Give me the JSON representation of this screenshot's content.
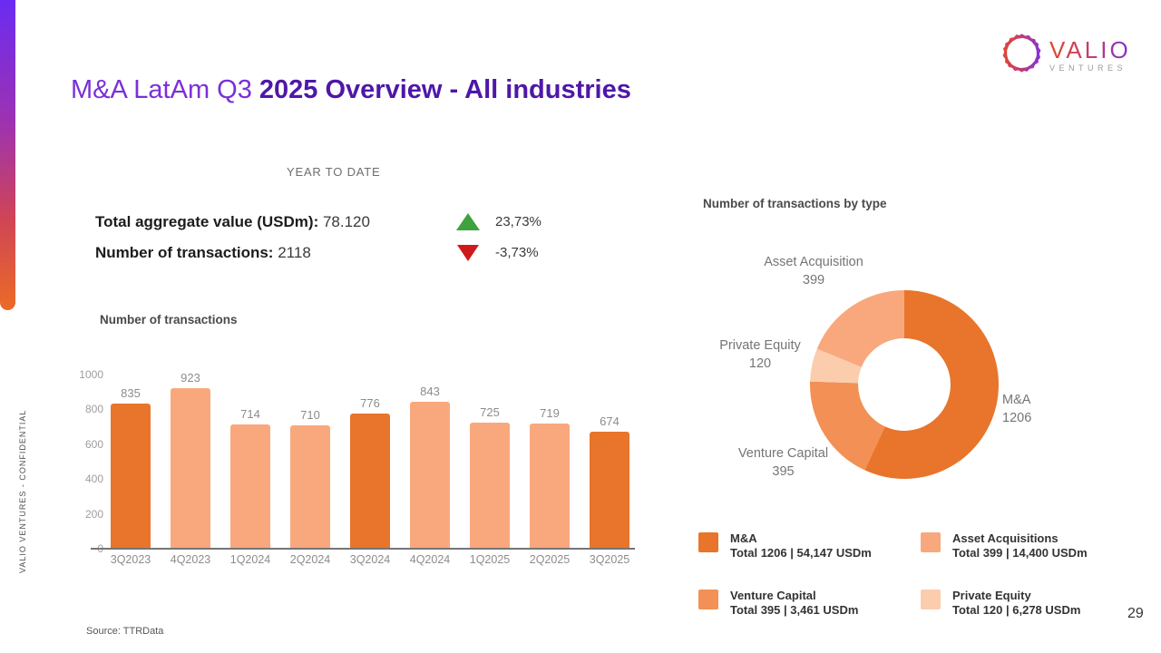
{
  "slide": {
    "title_regular": "M&A LatAm Q3 ",
    "title_bold": "2025 Overview - All industries",
    "title_regular_color": "#7b2fd8",
    "title_bold_color": "#4e17a8",
    "confidential": "VALIO VENTURES - CONFIDENTIAL",
    "source": "Source: TTRData",
    "page_number": "29"
  },
  "logo": {
    "name": "VALIO",
    "subtitle": "VENTURES"
  },
  "ytd": {
    "heading": "YEAR TO DATE",
    "rows": [
      {
        "label": "Total aggregate value (USDm):",
        "value": "78.120",
        "direction": "up",
        "change": "23,73%"
      },
      {
        "label": "Number of transactions:",
        "value": "2118",
        "direction": "down",
        "change": "-3,73%"
      }
    ],
    "up_color": "#3ea23e",
    "down_color": "#ce1a1a"
  },
  "chart_data": [
    {
      "type": "bar",
      "title": "Number of transactions",
      "categories": [
        "3Q2023",
        "4Q2023",
        "1Q2024",
        "2Q2024",
        "3Q2024",
        "4Q2024",
        "1Q2025",
        "2Q2025",
        "3Q2025"
      ],
      "values": [
        835,
        923,
        714,
        710,
        776,
        843,
        725,
        719,
        674
      ],
      "highlighted": [
        true,
        false,
        false,
        false,
        true,
        false,
        false,
        false,
        true
      ],
      "colors": {
        "highlight": "#e8752b",
        "normal": "#f9a87d"
      },
      "yticks": [
        0,
        200,
        400,
        600,
        800,
        1000
      ],
      "ylim": [
        0,
        1000
      ],
      "xlabel": "",
      "ylabel": "",
      "grid": false,
      "legend_position": "none"
    },
    {
      "type": "pie",
      "title": "Number of transactions by type",
      "donut": true,
      "inner_radius_ratio": 0.49,
      "start_angle": "top",
      "direction": "clockwise",
      "slices": [
        {
          "label": "M&A",
          "value": 1206,
          "color": "#e8752b"
        },
        {
          "label": "Venture Capital",
          "value": 395,
          "color": "#f29055"
        },
        {
          "label": "Private Equity",
          "value": 120,
          "color": "#fbcdad"
        },
        {
          "label": "Asset Acquisition",
          "value": 399,
          "color": "#f9a87d"
        }
      ]
    }
  ],
  "legend": [
    {
      "name": "M&A",
      "detail": "Total 1206 | 54,147 USDm",
      "color": "#e8752b"
    },
    {
      "name": "Asset Acquisitions",
      "detail": "Total 399 | 14,400 USDm",
      "color": "#f9a87d"
    },
    {
      "name": "Venture Capital",
      "detail": "Total 395 | 3,461 USDm",
      "color": "#f29055"
    },
    {
      "name": "Private Equity",
      "detail": "Total 120 | 6,278 USDm",
      "color": "#fbcdad"
    }
  ]
}
